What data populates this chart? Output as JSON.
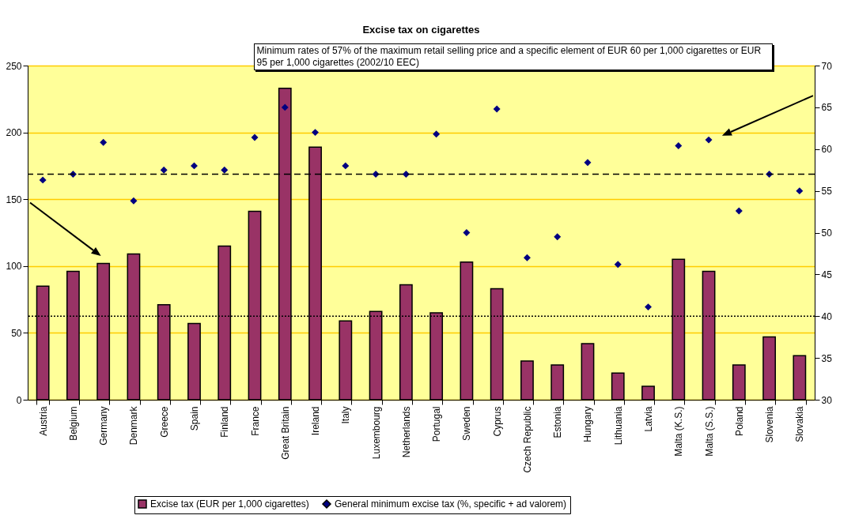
{
  "chart_data": {
    "type": "bar",
    "title": "Excise tax on cigarettes",
    "categories": [
      "Austria",
      "Belgium",
      "Germany",
      "Denmark",
      "Greece",
      "Spain",
      "Finland",
      "France",
      "Great Britain",
      "Ireland",
      "Italy",
      "Luxembourg",
      "Netherlands",
      "Portugal",
      "Sweden",
      "Cyprus",
      "Czech Republic",
      "Estonia",
      "Hungary",
      "Lithuania",
      "Latvia",
      "Malta (K.S.)",
      "Malta (S.S.)",
      "Poland",
      "Slovenia",
      "Slovakia"
    ],
    "series": [
      {
        "name": "Excise tax (EUR per 1,000 cigarettes)",
        "type": "bar",
        "color": "#993366",
        "values": [
          85,
          96,
          102,
          109,
          71,
          57,
          115,
          141,
          233,
          189,
          59,
          66,
          86,
          65,
          103,
          83,
          29,
          26,
          42,
          20,
          10,
          105,
          96,
          26,
          47,
          33
        ]
      },
      {
        "name": "General minimum excise tax (%, specific + ad valorem)",
        "type": "scatter",
        "axis": "y2",
        "marker": "diamond",
        "color": "#000080",
        "values": [
          56.3,
          57,
          60.8,
          53.8,
          57.5,
          58,
          57.5,
          61.4,
          65,
          62,
          58,
          57,
          57,
          61.8,
          50,
          64.8,
          47,
          49.5,
          58.4,
          46.2,
          41.1,
          60.4,
          61.1,
          52.6,
          57,
          55
        ]
      }
    ],
    "ylim": [
      0,
      250
    ],
    "yticks": [
      0,
      50,
      100,
      150,
      200,
      250
    ],
    "y2lim": [
      30,
      70
    ],
    "y2ticks": [
      30,
      35,
      40,
      45,
      50,
      55,
      60,
      65,
      70
    ],
    "ref_lines": [
      {
        "axis": "y2",
        "value": 57,
        "line_style": "dashed",
        "color": "#000000"
      },
      {
        "axis": "y2",
        "value": 40,
        "line_style": "dotted",
        "color": "#000000"
      }
    ],
    "annotations": [
      "Minimum rates of 57% of the maximum retail selling price and a specific element of EUR 60 per 1,000 cigarettes or EUR 95 per 1,000 cigarettes (2002/10 EEC)"
    ],
    "grid": "y",
    "legend": "bottom"
  }
}
